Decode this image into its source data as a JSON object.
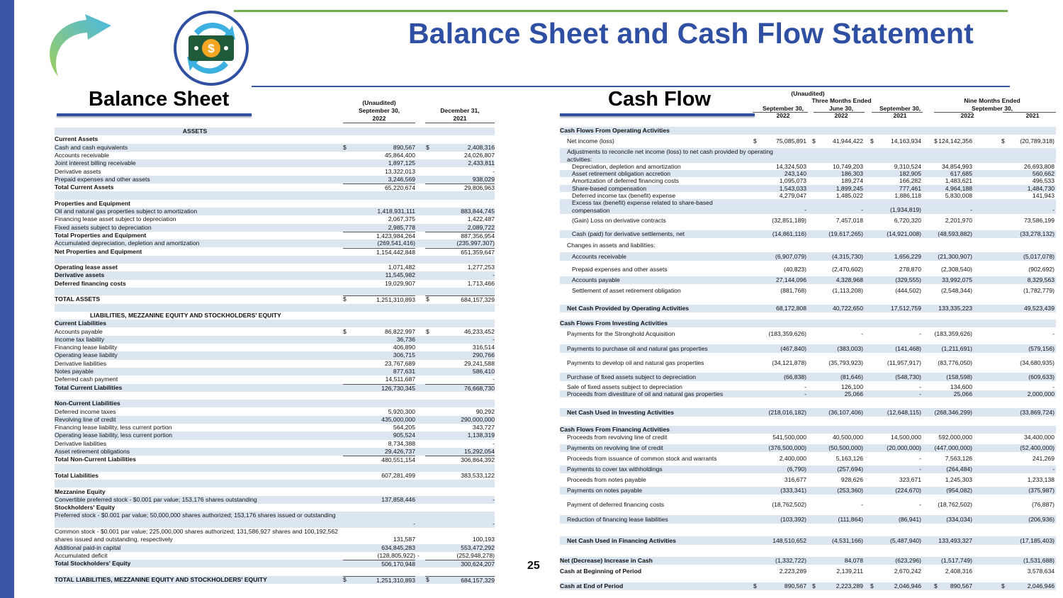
{
  "title": "Balance Sheet and Cash Flow Statement",
  "page_number": "25",
  "colors": {
    "brand_blue": "#2f4fa2",
    "accent_green": "#6fb04e",
    "row_shade": "#dce6f1"
  },
  "balance_sheet": {
    "title": "Balance Sheet",
    "header": {
      "unaudited": "(Unaudited)",
      "col1_line1": "September 30,",
      "col1_line2": "2022",
      "col2_line1": "December 31,",
      "col2_line2": "2021"
    },
    "rows": [
      {
        "label": "ASSETS",
        "style": "heading"
      },
      {
        "label": "Current Assets",
        "style": "bold"
      },
      {
        "label": "Cash and cash equivalents",
        "s1": "$",
        "v1": "890,567",
        "s2": "$",
        "v2": "2,408,316"
      },
      {
        "label": "Accounts receivable",
        "v1": "45,864,400",
        "v2": "24,026,807"
      },
      {
        "label": "Joint interest billing receivable",
        "v1": "1,897,125",
        "v2": "2,433,811"
      },
      {
        "label": "Derivative assets",
        "v1": "13,322,013",
        "v2": "-"
      },
      {
        "label": "Prepaid expenses and other assets",
        "v1": "3,246,569",
        "v2": "938,029"
      },
      {
        "label": "Total Current Assets",
        "style": "total",
        "v1": "65,220,674",
        "v2": "29,806,963"
      },
      {
        "style": "blank"
      },
      {
        "label": "Properties and Equipment",
        "style": "bold"
      },
      {
        "label": "Oil and natural gas properties subject to amortization",
        "v1": "1,418,931,111",
        "v2": "883,844,745"
      },
      {
        "label": "Financing lease asset subject to depreciation",
        "v1": "2,067,375",
        "v2": "1,422,487"
      },
      {
        "label": "Fixed assets subject to depreciation",
        "v1": "2,985,778",
        "v2": "2,089,722"
      },
      {
        "label": "Total Properties and Equipment",
        "style": "total",
        "v1": "1,423,984,264",
        "v2": "887,356,954"
      },
      {
        "label": "Accumulated depreciation, depletion and amortization",
        "v1": "(269,541,416)",
        "v2": "(235,997,307)"
      },
      {
        "label": "Net Properties and Equipment",
        "style": "total",
        "v1": "1,154,442,848",
        "v2": "651,359,647"
      },
      {
        "style": "blank"
      },
      {
        "label": "Operating lease asset",
        "style": "bold",
        "v1": "1,071,482",
        "v2": "1,277,253"
      },
      {
        "label": "Derivative assets",
        "style": "bold",
        "v1": "11,545,982",
        "v2": "-"
      },
      {
        "label": "Deferred financing costs",
        "style": "bold",
        "v1": "19,029,907",
        "v2": "1,713,466"
      },
      {
        "style": "blank"
      },
      {
        "label": "TOTAL ASSETS",
        "style": "total",
        "s1": "$",
        "v1": "1,251,310,893",
        "s2": "$",
        "v2": "684,157,329"
      },
      {
        "style": "blank"
      },
      {
        "label": "LIABILITIES, MEZZANINE EQUITY AND STOCKHOLDERS' EQUITY",
        "style": "heading"
      },
      {
        "label": "Current Liabilities",
        "style": "bold"
      },
      {
        "label": "Accounts payable",
        "s1": "$",
        "v1": "86,822,997",
        "s2": "$",
        "v2": "46,233,452"
      },
      {
        "label": "Income tax liability",
        "v1": "36,736",
        "v2": "-"
      },
      {
        "label": "Financing lease liability",
        "v1": "406,890",
        "v2": "316,514"
      },
      {
        "label": "Operating lease liability",
        "v1": "306,715",
        "v2": "290,766"
      },
      {
        "label": "Derivative liabilities",
        "v1": "23,767,689",
        "v2": "29,241,588"
      },
      {
        "label": "Notes payable",
        "v1": "877,631",
        "v2": "586,410"
      },
      {
        "label": "Deferred cash payment",
        "v1": "14,511,687",
        "v2": "-"
      },
      {
        "label": "Total Current Liabilities",
        "style": "total",
        "v1": "126,730,345",
        "v2": "76,668,730"
      },
      {
        "style": "blank"
      },
      {
        "label": "Non-Current Liabilities",
        "style": "bold"
      },
      {
        "label": "Deferred income taxes",
        "v1": "5,920,300",
        "v2": "90,292"
      },
      {
        "label": "Revolving line of credit",
        "v1": "435,000,000",
        "v2": "290,000,000"
      },
      {
        "label": "Financing lease liability, less current portion",
        "v1": "564,205",
        "v2": "343,727"
      },
      {
        "label": "Operating lease liability, less current portion",
        "v1": "905,524",
        "v2": "1,138,319"
      },
      {
        "label": "Derivative liabilities",
        "v1": "8,734,388",
        "v2": "-"
      },
      {
        "label": "Asset retirement obligations",
        "v1": "29,426,737",
        "v2": "15,292,054"
      },
      {
        "label": "Total Non-Current Liabilities",
        "style": "total",
        "v1": "480,551,154",
        "v2": "306,864,392"
      },
      {
        "style": "blank"
      },
      {
        "label": "Total Liabilities",
        "style": "bold",
        "v1": "607,281,499",
        "v2": "383,533,122"
      },
      {
        "style": "blank"
      },
      {
        "label": "Mezzanine Equity",
        "style": "bold"
      },
      {
        "label": "Convertible preferred stock - $0.001 par value; 153,176 shares outstanding",
        "v1": "137,858,446",
        "v2": "-"
      },
      {
        "label": "Stockholders' Equity",
        "style": "bold"
      },
      {
        "label": "Preferred stock - $0.001 par value; 50,000,000 shares authorized; 153,176 shares issued or outstanding",
        "style": "double",
        "v1": "-",
        "v2": "-"
      },
      {
        "label": "Common stock - $0.001 par value; 225,000,000 shares authorized; 131,586,927 shares and 100,192,562 shares issued and outstanding, respectively",
        "style": "double",
        "v1": "131,587",
        "v2": "100,193"
      },
      {
        "label": "Additional paid-in capital",
        "v1": "634,845,283",
        "v2": "553,472,292"
      },
      {
        "label": "Accumulated deficit",
        "v1": "(128,805,922)",
        "s2": "-",
        "v2": "(252,948,278)"
      },
      {
        "label": "Total Stockholders' Equity",
        "style": "total",
        "v1": "506,170,948",
        "v2": "300,624,207"
      },
      {
        "style": "blank"
      },
      {
        "label": "TOTAL LIABILITIES, MEZZANINE EQUITY AND STOCKHOLDERS' EQUITY",
        "style": "total",
        "s1": "$",
        "v1": "1,251,310,893",
        "s2": "$",
        "v2": "684,157,329"
      }
    ]
  },
  "cash_flow": {
    "title": "Cash Flow",
    "header": {
      "unaudited": "(Unaudited)",
      "three_months": "Three Months Ended",
      "nine_months": "Nine Months Ended",
      "nine_months_date": "September 30,",
      "columns": [
        {
          "line1": "September 30,",
          "line2": "2022"
        },
        {
          "line1": "June 30,",
          "line2": "2022"
        },
        {
          "line1": "September 30,",
          "line2": "2021"
        },
        {
          "line1": "",
          "line2": "2022"
        },
        {
          "line1": "",
          "line2": "2021"
        }
      ]
    },
    "rows": [
      {
        "label": "Cash Flows From Operating Activities",
        "style": "section"
      },
      {
        "label": "Net income (loss)",
        "style": "item",
        "dollar": "$",
        "v": [
          "75,085,891",
          "41,944,422",
          "14,163,934",
          "124,142,356",
          "(20,789,318)"
        ]
      },
      {
        "label": "Adjustments to reconcile net income (loss) to net cash provided by operating activities:",
        "style": "item-wrap"
      },
      {
        "label": "Depreciation, depletion and amortization",
        "style": "sub",
        "v": [
          "14,324,503",
          "10,749,203",
          "9,310,524",
          "34,854,993",
          "26,693,808"
        ]
      },
      {
        "label": "Asset retirement obligation accretion",
        "style": "sub",
        "v": [
          "243,140",
          "186,303",
          "182,905",
          "617,685",
          "560,662"
        ]
      },
      {
        "label": "Amortization of deferred financing costs",
        "style": "sub",
        "v": [
          "1,095,073",
          "189,274",
          "166,282",
          "1,483,621",
          "496,533"
        ]
      },
      {
        "label": "Share-based compensation",
        "style": "sub",
        "v": [
          "1,543,033",
          "1,899,245",
          "777,461",
          "4,964,188",
          "1,484,730"
        ]
      },
      {
        "label": "Deferred income tax (benefit) expense",
        "style": "sub",
        "v": [
          "4,279,047",
          "1,485,022",
          "1,886,118",
          "5,830,008",
          "141,943"
        ]
      },
      {
        "label": "Excess tax (benefit) expense related to share-based compensation",
        "style": "sub-wrap",
        "v": [
          "-",
          "-",
          "(1,934,819)",
          "-",
          "-"
        ]
      },
      {
        "label": "(Gain) Loss on derivative contracts",
        "style": "sub",
        "v": [
          "(32,851,189)",
          "7,457,018",
          "6,720,320",
          "2,201,970",
          "73,586,199"
        ]
      },
      {
        "label": "Cash (paid) for derivative settlements, net",
        "style": "sub",
        "v": [
          "(14,861,116)",
          "(19,617,265)",
          "(14,921,008)",
          "(48,593,882)",
          "(33,278,132)"
        ]
      },
      {
        "label": "Changes in assets and liabilities:",
        "style": "item"
      },
      {
        "label": "Accounts receivable",
        "style": "sub",
        "v": [
          "(6,907,079)",
          "(4,315,730)",
          "1,656,229",
          "(21,300,907)",
          "(5,017,078)"
        ]
      },
      {
        "label": "Prepaid expenses and other assets",
        "style": "sub",
        "v": [
          "(40,823)",
          "(2,470,602)",
          "278,870",
          "(2,308,540)",
          "(902,692)"
        ]
      },
      {
        "label": "Accounts payable",
        "style": "sub",
        "v": [
          "27,144,096",
          "4,328,968",
          "(329,555)",
          "33,992,075",
          "8,329,563"
        ]
      },
      {
        "label": "Settlement of asset retirement obligation",
        "style": "sub",
        "v": [
          "(881,768)",
          "(1,113,208)",
          "(444,502)",
          "(2,548,344)",
          "(1,782,779)"
        ]
      },
      {
        "label": "Net Cash Provided by Operating Activities",
        "style": "total",
        "v": [
          "68,172,808",
          "40,722,650",
          "17,512,759",
          "133,335,223",
          "49,523,439"
        ]
      },
      {
        "label": "Cash Flows From Investing Activities",
        "style": "section"
      },
      {
        "label": "Payments for the Stronghold Acquisition",
        "style": "item",
        "v": [
          "(183,359,626)",
          "-",
          "-",
          "(183,359,626)",
          "-"
        ]
      },
      {
        "label": "Payments to purchase oil and natural gas properties",
        "style": "item",
        "v": [
          "(467,840)",
          "(383,003)",
          "(141,468)",
          "(1,211,691)",
          "(579,156)"
        ]
      },
      {
        "label": "Payments to develop oil and natural gas properties",
        "style": "item",
        "v": [
          "(34,121,878)",
          "(35,793,923)",
          "(11,957,917)",
          "(83,776,050)",
          "(34,680,935)"
        ]
      },
      {
        "label": "Purchase of fixed assets subject to depreciation",
        "style": "item",
        "v": [
          "(66,838)",
          "(81,646)",
          "(548,730)",
          "(158,598)",
          "(609,633)"
        ]
      },
      {
        "label": "Sale of fixed assets subject to depreciation",
        "style": "item",
        "v": [
          "-",
          "126,100",
          "-",
          "134,600",
          "-"
        ]
      },
      {
        "label": "Proceeds from divestiture of oil and natural gas properties",
        "style": "item",
        "v": [
          "-",
          "25,066",
          "-",
          "25,066",
          "2,000,000"
        ]
      },
      {
        "label": "Net Cash Used in Investing Activities",
        "style": "total",
        "v": [
          "(218,016,182)",
          "(36,107,406)",
          "(12,648,115)",
          "(268,346,299)",
          "(33,869,724)"
        ]
      },
      {
        "label": "Cash Flows From Financing Activities",
        "style": "section"
      },
      {
        "label": "Proceeds from revolving line of credit",
        "style": "item",
        "v": [
          "541,500,000",
          "40,500,000",
          "14,500,000",
          "592,000,000",
          "34,400,000"
        ]
      },
      {
        "label": "Payments on revolving line of credit",
        "style": "item",
        "v": [
          "(376,500,000)",
          "(50,500,000)",
          "(20,000,000)",
          "(447,000,000)",
          "(52,400,000)"
        ]
      },
      {
        "label": "Proceeds from issuance of common stock and warrants",
        "style": "item",
        "v": [
          "2,400,000",
          "5,163,126",
          "-",
          "7,563,126",
          "241,269"
        ]
      },
      {
        "label": "Payments to cover tax withholdings",
        "style": "item",
        "v": [
          "(6,790)",
          "(257,694)",
          "-",
          "(264,484)",
          "-"
        ]
      },
      {
        "label": "Proceeds from notes payable",
        "style": "item",
        "v": [
          "316,677",
          "928,626",
          "323,671",
          "1,245,303",
          "1,233,138"
        ]
      },
      {
        "label": "Payments on notes payable",
        "style": "item",
        "v": [
          "(333,341)",
          "(253,360)",
          "(224,670)",
          "(954,082)",
          "(375,987)"
        ]
      },
      {
        "label": "Payment of deferred financing costs",
        "style": "item",
        "v": [
          "(18,762,502)",
          "-",
          "-",
          "(18,762,502)",
          "(76,887)"
        ]
      },
      {
        "label": "Reduction of financing lease liabilities",
        "style": "item",
        "v": [
          "(103,392)",
          "(111,864)",
          "(86,941)",
          "(334,034)",
          "(206,936)"
        ]
      },
      {
        "label": "Net Cash Used in Financing Activities",
        "style": "total",
        "v": [
          "148,510,652",
          "(4,531,166)",
          "(5,487,940)",
          "133,493,327",
          "(17,185,403)"
        ]
      },
      {
        "label": "Net (Decrease) Increase in Cash",
        "style": "section",
        "v": [
          "(1,332,722)",
          "84,078",
          "(623,296)",
          "(1,517,749)",
          "(1,531,688)"
        ]
      },
      {
        "label": "Cash at Beginning of Period",
        "style": "section",
        "v": [
          "2,223,289",
          "2,139,211",
          "2,670,242",
          "2,408,316",
          "3,578,634"
        ]
      },
      {
        "label": "Cash at End of Period",
        "style": "section",
        "dollar": "$",
        "v": [
          "890,567",
          "2,223,289",
          "2,046,946",
          "890,567",
          "2,046,946"
        ]
      }
    ]
  }
}
